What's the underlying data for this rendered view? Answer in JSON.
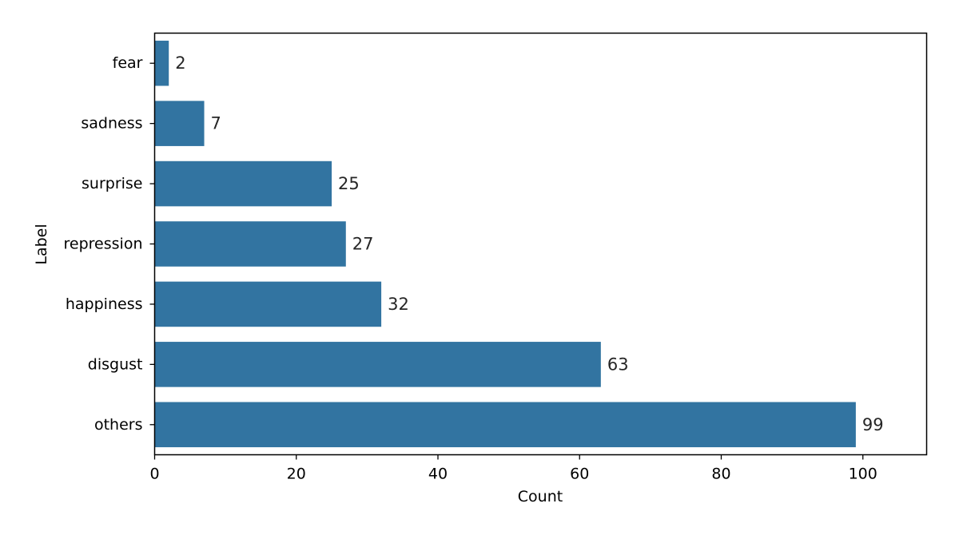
{
  "chart_data": {
    "type": "bar",
    "orientation": "horizontal",
    "categories": [
      "fear",
      "sadness",
      "surprise",
      "repression",
      "happiness",
      "disgust",
      "others"
    ],
    "values": [
      2,
      7,
      25,
      27,
      32,
      63,
      99
    ],
    "data_labels": [
      "2",
      "7",
      "25",
      "27",
      "32",
      "63",
      "99"
    ],
    "title": "",
    "xlabel": "Count",
    "ylabel": "Label",
    "xlim": [
      0,
      109
    ],
    "xticks": [
      0,
      20,
      40,
      60,
      80,
      100
    ],
    "grid": false,
    "bar_color": "#3274a1"
  }
}
